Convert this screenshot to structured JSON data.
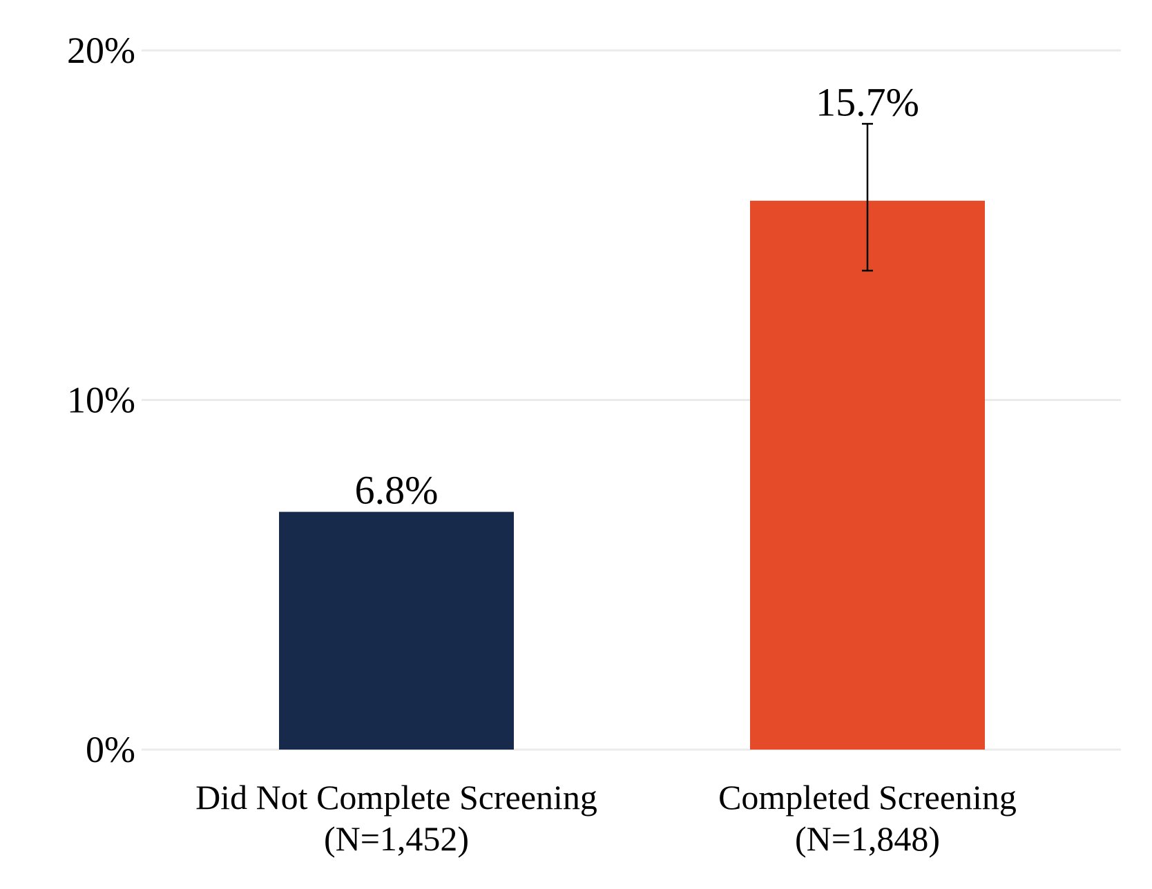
{
  "chart_data": {
    "type": "bar",
    "categories": [
      {
        "name": "Did Not Complete Screening",
        "n_label": "(N=1,452)"
      },
      {
        "name": "Completed Screening",
        "n_label": "(N=1,848)"
      }
    ],
    "values": [
      6.8,
      15.7
    ],
    "value_labels": [
      "6.8%",
      "15.7%"
    ],
    "error_bars": [
      null,
      {
        "low": 13.7,
        "high": 17.9
      }
    ],
    "ylim": [
      0,
      20
    ],
    "yticks": [
      {
        "value": 0,
        "label": "0%"
      },
      {
        "value": 10,
        "label": "10%"
      },
      {
        "value": 20,
        "label": "20%"
      }
    ],
    "grid": "horizontal",
    "bar_colors": [
      "#172a4b",
      "#e54b29"
    ],
    "grid_color": "#ebebeb",
    "title": "",
    "xlabel": "",
    "ylabel": ""
  }
}
